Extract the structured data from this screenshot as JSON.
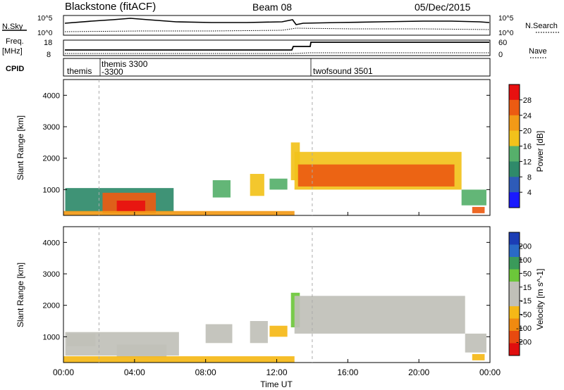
{
  "header": {
    "title": "Blackstone (fitACF)",
    "beam": "Beam 08",
    "date": "05/Dec/2015"
  },
  "aux_panels": {
    "nsky": {
      "label": "N.Sky",
      "right_label": "N.Search",
      "top_tick_left": "10^5",
      "bottom_tick_left": "10^0",
      "top_tick_right": "10^5",
      "bottom_tick_right": "10^0"
    },
    "freq": {
      "label_1": "Freq.",
      "label_2": "[MHz]",
      "right_label": "Nave",
      "ticks_left": [
        "18",
        "8"
      ],
      "ticks_right": [
        "60",
        "0"
      ]
    },
    "cpid": {
      "label": "CPID",
      "entries": [
        "themis",
        "themis 3300",
        "-3300",
        "twofsound 3501"
      ]
    }
  },
  "colors": {
    "power_scale": [
      "#1a1aff",
      "#2e5bb8",
      "#2f8a6a",
      "#56b06b",
      "#f2c21b",
      "#f29a17",
      "#ec5b12",
      "#e81010"
    ],
    "velocity_scale": [
      "#1b3db5",
      "#2a6ac6",
      "#3a9a5a",
      "#6cc73a",
      "#c0c0b8",
      "#c0c0b8",
      "#f5b817",
      "#f08a10",
      "#e84a10",
      "#e00e0e"
    ]
  },
  "chart_data": [
    {
      "type": "heatmap",
      "panel": "power",
      "xlabel": "Time UT",
      "ylabel": "Slant Range [km]",
      "x_ticks": [
        "00:00",
        "04:00",
        "08:00",
        "12:00",
        "16:00",
        "20:00",
        "00:00"
      ],
      "xlim_hours": [
        0,
        24
      ],
      "y_ticks": [
        1000,
        2000,
        3000,
        4000
      ],
      "ylim": [
        180,
        4500
      ],
      "colorbar": {
        "label": "Power [dB]",
        "ticks": [
          "4",
          "8",
          "12",
          "16",
          "20",
          "24",
          "28"
        ],
        "range": [
          0,
          30
        ]
      },
      "cpid_markers_hours": [
        2.0,
        14.0
      ],
      "regions": [
        {
          "t0": 0.1,
          "t1": 6.2,
          "r0": 300,
          "r1": 1050,
          "value": 10
        },
        {
          "t0": 2.2,
          "t1": 5.2,
          "r0": 250,
          "r1": 900,
          "value": 24
        },
        {
          "t0": 3.0,
          "t1": 4.6,
          "r0": 300,
          "r1": 650,
          "value": 28
        },
        {
          "t0": 0.0,
          "t1": 13.0,
          "r0": 180,
          "r1": 320,
          "value": 20
        },
        {
          "t0": 8.4,
          "t1": 9.4,
          "r0": 750,
          "r1": 1300,
          "value": 14
        },
        {
          "t0": 10.5,
          "t1": 11.3,
          "r0": 800,
          "r1": 1500,
          "value": 16
        },
        {
          "t0": 11.6,
          "t1": 12.6,
          "r0": 1000,
          "r1": 1350,
          "value": 12
        },
        {
          "t0": 12.8,
          "t1": 13.3,
          "r0": 1300,
          "r1": 2500,
          "value": 18
        },
        {
          "t0": 13.0,
          "t1": 22.4,
          "r0": 1000,
          "r1": 2200,
          "value": 16
        },
        {
          "t0": 13.2,
          "t1": 22.0,
          "r0": 1100,
          "r1": 1800,
          "value": 24
        },
        {
          "t0": 22.4,
          "t1": 23.8,
          "r0": 500,
          "r1": 1000,
          "value": 14
        },
        {
          "t0": 23.0,
          "t1": 23.7,
          "r0": 250,
          "r1": 450,
          "value": 26
        }
      ]
    },
    {
      "type": "heatmap",
      "panel": "velocity",
      "xlabel": "Time UT",
      "ylabel": "Slant Range [km]",
      "x_ticks": [
        "00:00",
        "04:00",
        "08:00",
        "12:00",
        "16:00",
        "20:00",
        "00:00"
      ],
      "xlim_hours": [
        0,
        24
      ],
      "y_ticks": [
        1000,
        2000,
        3000,
        4000
      ],
      "ylim": [
        180,
        4500
      ],
      "colorbar": {
        "label": "Velocity [m s^-1]",
        "ticks": [
          "200",
          "100",
          "50",
          "15",
          "-15",
          "-50",
          "-100",
          "-200"
        ],
        "range": [
          -250,
          250
        ]
      },
      "cpid_markers_hours": [
        2.0,
        14.0
      ],
      "regions": [
        {
          "t0": 0.1,
          "t1": 6.5,
          "r0": 400,
          "r1": 1150,
          "value": 0
        },
        {
          "t0": 0.2,
          "t1": 1.8,
          "r0": 700,
          "r1": 1100,
          "value": -40
        },
        {
          "t0": 3.0,
          "t1": 5.8,
          "r0": 350,
          "r1": 750,
          "value": -30
        },
        {
          "t0": 0.0,
          "t1": 13.0,
          "r0": 180,
          "r1": 380,
          "value": -60
        },
        {
          "t0": 8.0,
          "t1": 9.5,
          "r0": 800,
          "r1": 1400,
          "value": 30
        },
        {
          "t0": 10.5,
          "t1": 11.5,
          "r0": 800,
          "r1": 1500,
          "value": -40
        },
        {
          "t0": 11.6,
          "t1": 12.6,
          "r0": 1000,
          "r1": 1350,
          "value": -50
        },
        {
          "t0": 12.8,
          "t1": 13.3,
          "r0": 1300,
          "r1": 2400,
          "value": 60
        },
        {
          "t0": 13.0,
          "t1": 22.6,
          "r0": 1100,
          "r1": 2300,
          "value": 0
        },
        {
          "t0": 22.6,
          "t1": 23.8,
          "r0": 500,
          "r1": 1100,
          "value": 0
        },
        {
          "t0": 23.0,
          "t1": 23.7,
          "r0": 250,
          "r1": 450,
          "value": -80
        }
      ]
    }
  ]
}
